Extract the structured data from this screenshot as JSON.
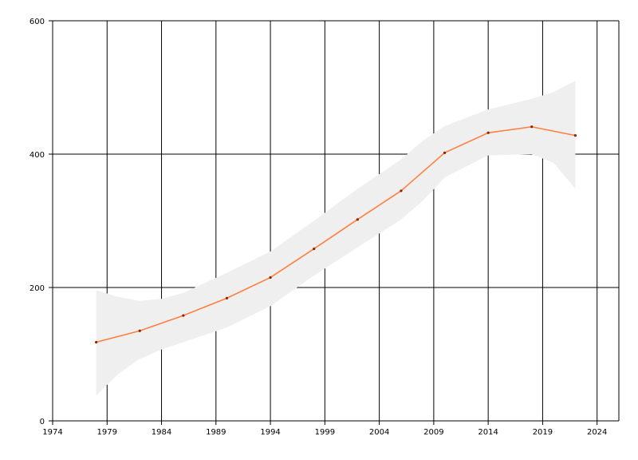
{
  "chart_data": {
    "type": "line",
    "title": "",
    "xlabel": "",
    "ylabel": "",
    "xlim": [
      1974,
      2026
    ],
    "ylim": [
      0,
      600
    ],
    "x_ticks": [
      1974,
      1979,
      1984,
      1989,
      1994,
      1999,
      2004,
      2009,
      2014,
      2019,
      2024
    ],
    "y_ticks": [
      0,
      200,
      400,
      600
    ],
    "grid": true,
    "legend": "none",
    "colors": {
      "line": "#ff7f3f",
      "marker": "#8b2500",
      "band": "#efefef",
      "grid": "#000000"
    },
    "series": [
      {
        "x": [
          1978,
          1982,
          1986,
          1990,
          1994,
          1998,
          2002,
          2006,
          2010,
          2014,
          2018,
          2022
        ],
        "y": [
          118,
          135,
          158,
          184,
          215,
          258,
          302,
          345,
          402,
          432,
          441,
          428
        ]
      }
    ],
    "band": {
      "x": [
        1978,
        1980,
        1982,
        1984,
        1986,
        1990,
        1994,
        1998,
        2002,
        2006,
        2008,
        2010,
        2014,
        2018,
        2020,
        2022
      ],
      "upper": [
        196,
        186,
        180,
        183,
        192,
        222,
        254,
        300,
        348,
        392,
        420,
        442,
        467,
        483,
        493,
        510
      ],
      "lower": [
        38,
        70,
        93,
        107,
        118,
        140,
        172,
        218,
        260,
        302,
        330,
        365,
        398,
        400,
        387,
        348
      ]
    }
  }
}
